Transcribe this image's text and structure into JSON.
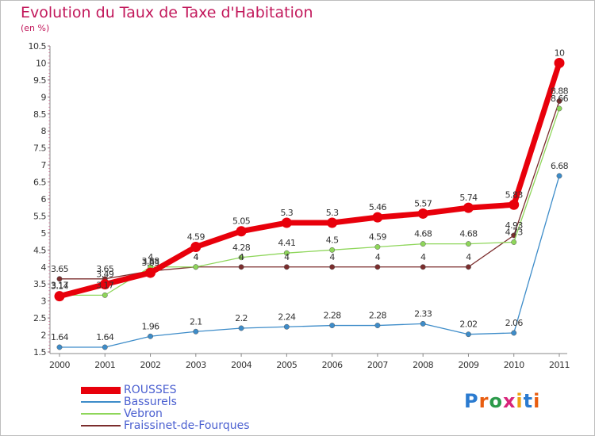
{
  "title": "Evolution du Taux de Taxe d'Habitation",
  "subtitle": "(en %)",
  "logo": "Proxiti",
  "chart_data": {
    "type": "line",
    "title": "Evolution du Taux de Taxe d'Habitation",
    "ylabel": "(en %)",
    "xlabel": "",
    "x": [
      "2000",
      "2001",
      "2002",
      "2003",
      "2004",
      "2005",
      "2006",
      "2007",
      "2008",
      "2009",
      "2010",
      "2011"
    ],
    "ylim": [
      1.5,
      10.5
    ],
    "yticks": [
      "1.5",
      "2",
      "2.5",
      "3",
      "3.5",
      "4",
      "4.5",
      "5",
      "5.5",
      "6",
      "6.5",
      "7",
      "7.5",
      "8",
      "8.5",
      "9",
      "9.5",
      "10",
      "10.5"
    ],
    "grid": false,
    "legend_position": "bottom-left",
    "series": [
      {
        "name": "ROUSSES",
        "color": "#e8000b",
        "values": [
          3.14,
          3.49,
          3.83,
          4.59,
          5.05,
          5.3,
          5.3,
          5.46,
          5.57,
          5.74,
          5.83,
          10
        ],
        "labels": [
          "3.14",
          "3.49",
          "3.83",
          "4.59",
          "5.05",
          "5.3",
          "5.3",
          "5.46",
          "5.57",
          "5.74",
          "5.83",
          "10"
        ]
      },
      {
        "name": "Bassurels",
        "color": "#3d8cc9",
        "values": [
          1.64,
          1.64,
          1.96,
          2.1,
          2.2,
          2.24,
          2.28,
          2.28,
          2.33,
          2.02,
          2.06,
          6.68
        ],
        "labels": [
          "1.64",
          "1.64",
          "1.96",
          "2.1",
          "2.2",
          "2.24",
          "2.28",
          "2.28",
          "2.33",
          "2.02",
          "2.06",
          "6.68"
        ]
      },
      {
        "name": "Vebron",
        "color": "#8ed65a",
        "values": [
          3.17,
          3.17,
          4.0,
          4.0,
          4.28,
          4.41,
          4.5,
          4.59,
          4.68,
          4.68,
          4.73,
          8.66
        ],
        "labels": [
          "3.17",
          "3.17",
          "4",
          "4",
          "4.28",
          "4.41",
          "4.5",
          "4.59",
          "4.68",
          "4.68",
          "4.73",
          "8.66"
        ]
      },
      {
        "name": "Fraissinet-de-Fourques",
        "color": "#7b2d2d",
        "values": [
          3.65,
          3.65,
          3.88,
          4.0,
          4.0,
          4.0,
          4.0,
          4.0,
          4.0,
          4.0,
          4.93,
          8.88
        ],
        "labels": [
          "3.65",
          "3.65",
          "3.88",
          "4",
          "4",
          "4",
          "4",
          "4",
          "4",
          "4",
          "4.93",
          "8.88"
        ]
      }
    ]
  }
}
